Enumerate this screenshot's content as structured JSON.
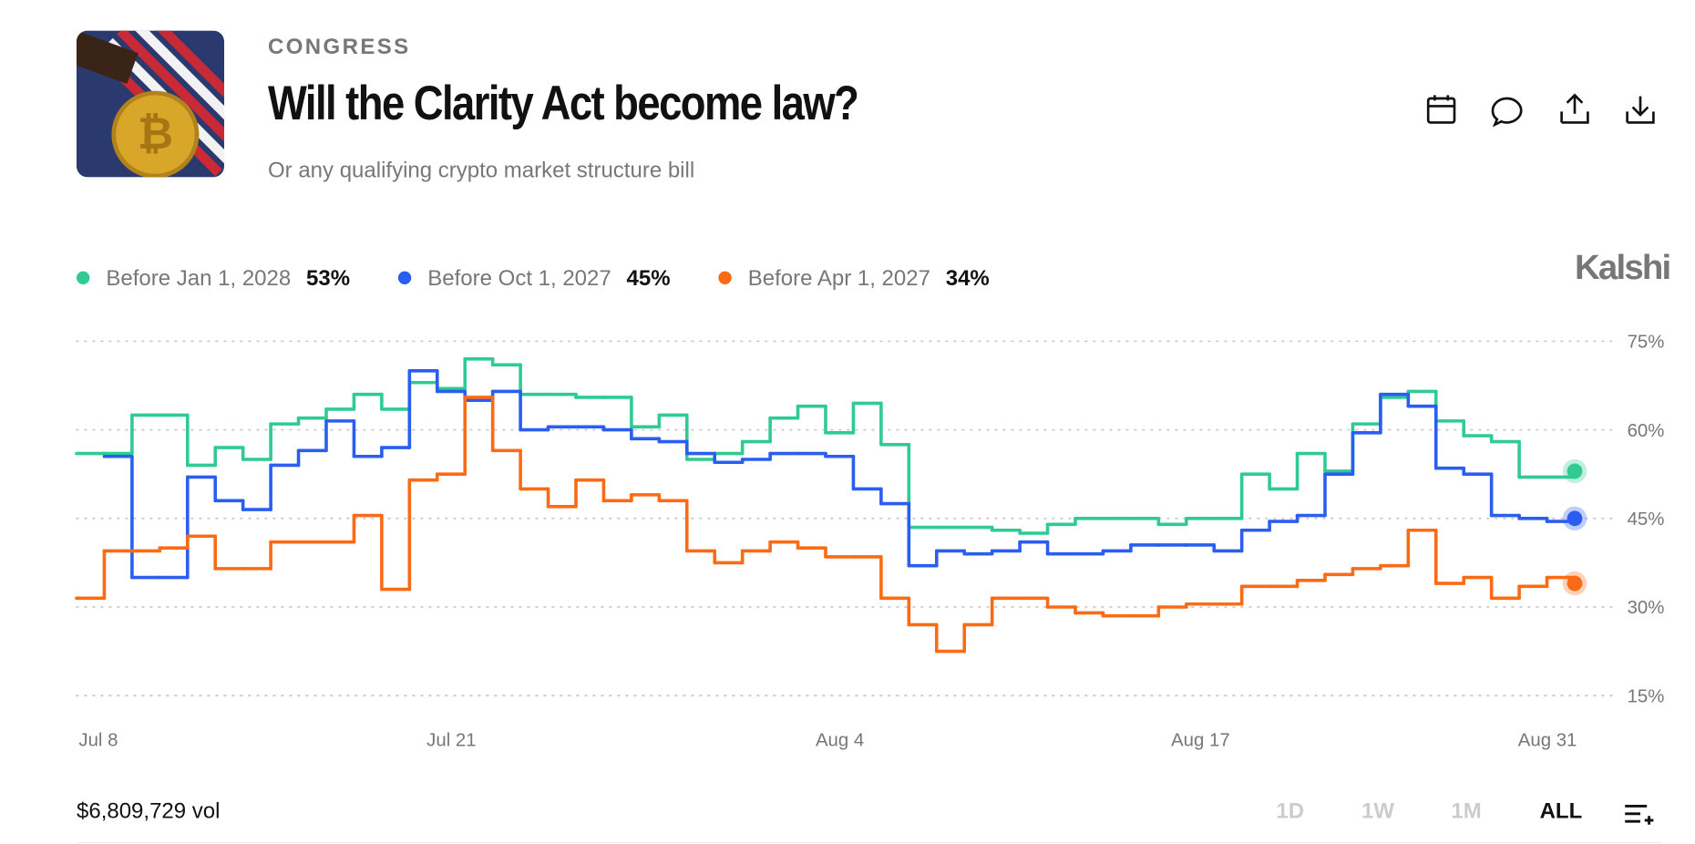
{
  "header": {
    "category": "CONGRESS",
    "title": "Will the Clarity Act become law?",
    "subtitle": "Or any qualifying crypto market structure bill",
    "brand": "Kalshi"
  },
  "footer": {
    "volume": "$6,809,729 vol",
    "ranges": [
      "1D",
      "1W",
      "1M",
      "ALL"
    ]
  },
  "chart_data": {
    "type": "line",
    "step": true,
    "categories": [
      "Jul 8",
      null,
      null,
      null,
      null,
      null,
      null,
      null,
      null,
      null,
      null,
      null,
      null,
      "Jul 21",
      null,
      null,
      null,
      null,
      null,
      null,
      null,
      null,
      null,
      null,
      null,
      null,
      null,
      "Aug 4",
      null,
      null,
      null,
      null,
      null,
      null,
      null,
      null,
      null,
      null,
      null,
      null,
      "Aug 17",
      null,
      null,
      null,
      null,
      null,
      null,
      null,
      null,
      null,
      null,
      null,
      null,
      null,
      "Aug 31"
    ],
    "ylim": [
      15,
      75
    ],
    "yticks": [
      {
        "value": 15,
        "label": "15%"
      },
      {
        "value": 30,
        "label": "30%"
      },
      {
        "value": 45,
        "label": "45%"
      },
      {
        "value": 60,
        "label": "60%"
      },
      {
        "value": 75,
        "label": "75%"
      }
    ],
    "grid": true,
    "series": [
      {
        "name": "Before Jan 1, 2028",
        "color": "#2fcb92",
        "values": [
          56,
          56,
          62.5,
          62.5,
          54,
          57,
          55,
          61,
          62,
          63.5,
          66,
          63.5,
          68,
          67,
          72,
          71,
          66,
          66,
          65.5,
          65.5,
          60.5,
          62.5,
          55,
          56,
          58,
          62,
          64,
          59.5,
          64.5,
          57.5,
          43.5,
          43.5,
          43.5,
          43,
          42.5,
          44,
          45,
          45,
          45,
          44,
          45,
          45,
          52.5,
          50,
          56,
          53,
          61,
          65.5,
          66.5,
          61.5,
          59,
          58,
          52,
          52,
          53
        ],
        "value_labels": [
          null,
          null,
          null,
          null,
          null,
          null,
          null,
          null,
          null,
          null,
          null,
          null,
          null,
          null,
          null,
          null,
          null,
          null,
          null,
          null,
          null,
          null,
          null,
          null,
          null,
          null,
          null,
          null,
          null,
          null,
          null,
          null,
          null,
          null,
          null,
          null,
          null,
          null,
          null,
          null,
          null,
          null,
          null,
          null,
          null,
          null,
          null,
          null,
          null,
          null,
          null,
          null,
          null,
          null,
          "53%"
        ]
      },
      {
        "name": "Before Oct 1, 2027",
        "color": "#2a5ef0",
        "values": [
          null,
          55.5,
          35,
          35,
          52,
          48,
          46.5,
          54,
          56.5,
          61.5,
          55.5,
          57,
          70,
          66.5,
          65,
          66.5,
          60,
          60.5,
          60.5,
          60,
          58.5,
          58,
          56,
          54.5,
          55,
          56,
          56,
          55.5,
          50,
          47.5,
          37,
          39.5,
          39,
          39.5,
          41,
          39,
          39,
          39.5,
          40.5,
          40.5,
          40.5,
          39.5,
          43,
          44.5,
          45.5,
          52.5,
          59.5,
          66,
          64,
          53.5,
          52.5,
          45.5,
          45,
          44.5,
          45
        ],
        "value_labels": [
          null,
          null,
          null,
          null,
          null,
          null,
          null,
          null,
          null,
          null,
          null,
          null,
          null,
          null,
          null,
          null,
          null,
          null,
          null,
          null,
          null,
          null,
          null,
          null,
          null,
          null,
          null,
          null,
          null,
          null,
          null,
          null,
          null,
          null,
          null,
          null,
          null,
          null,
          null,
          null,
          null,
          null,
          null,
          null,
          null,
          null,
          null,
          null,
          null,
          null,
          null,
          null,
          null,
          null,
          "45%"
        ]
      },
      {
        "name": "Before Apr 1, 2027",
        "color": "#fb6b15",
        "values": [
          31.5,
          39.5,
          39.5,
          40,
          42,
          36.5,
          36.5,
          41,
          41,
          41,
          45.5,
          33,
          51.5,
          52.5,
          65.5,
          56.5,
          50,
          47,
          51.5,
          48,
          49,
          48,
          39.5,
          37.5,
          39.5,
          41,
          40,
          38.5,
          38.5,
          31.5,
          27,
          22.5,
          27,
          31.5,
          31.5,
          30,
          29,
          28.5,
          28.5,
          30,
          30.5,
          30.5,
          33.5,
          33.5,
          34.5,
          35.5,
          36.5,
          37,
          43,
          34,
          35,
          31.5,
          33.5,
          35,
          34
        ],
        "value_labels": [
          null,
          null,
          null,
          null,
          null,
          null,
          null,
          null,
          null,
          null,
          null,
          null,
          null,
          null,
          null,
          null,
          null,
          null,
          null,
          null,
          null,
          null,
          null,
          null,
          null,
          null,
          null,
          null,
          null,
          null,
          null,
          null,
          null,
          null,
          null,
          null,
          null,
          null,
          null,
          null,
          null,
          null,
          null,
          null,
          null,
          null,
          null,
          null,
          null,
          null,
          null,
          null,
          null,
          null,
          "34%"
        ]
      }
    ]
  }
}
